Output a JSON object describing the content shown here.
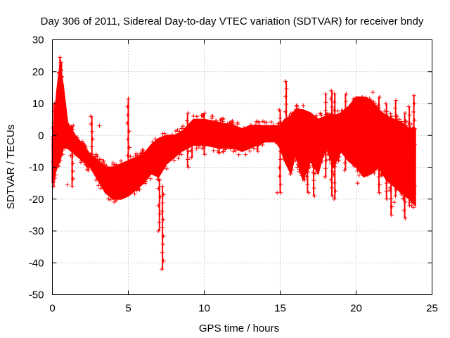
{
  "chart_data": {
    "type": "scatter",
    "title": "Day 306 of 2011, Sidereal Day-to-day VTEC variation (SDTVAR) for receiver bndy",
    "xlabel": "GPS time / hours",
    "ylabel": "SDTVAR / TECUs",
    "xlim": [
      0,
      25
    ],
    "ylim": [
      -50,
      30
    ],
    "xticks": [
      0,
      5,
      10,
      15,
      20,
      25
    ],
    "yticks": [
      -50,
      -40,
      -30,
      -20,
      -10,
      0,
      10,
      20,
      30
    ],
    "grid": true,
    "marker": "+",
    "color": "#ff0000",
    "series": [
      {
        "name": "SDTVAR",
        "envelope": {
          "x": [
            0.0,
            0.3,
            0.5,
            0.7,
            1.0,
            1.5,
            2.0,
            2.5,
            3.0,
            3.5,
            4.0,
            4.5,
            5.0,
            5.5,
            6.0,
            6.5,
            7.0,
            7.5,
            8.0,
            8.5,
            8.9,
            9.3,
            10.0,
            11.0,
            12.0,
            12.5,
            13.0,
            14.0,
            14.7,
            15.0,
            15.3,
            15.7,
            16.0,
            16.5,
            17.0,
            17.5,
            18.0,
            18.5,
            19.0,
            19.5,
            20.0,
            20.5,
            21.0,
            21.5,
            22.0,
            22.5,
            23.0,
            23.5,
            23.9
          ],
          "upper": [
            -2,
            14,
            22,
            16,
            4,
            0,
            -3,
            -6,
            -8,
            -10,
            -10,
            -9,
            -8,
            -7,
            -6,
            -3,
            -1,
            0,
            0,
            1,
            3,
            5,
            5,
            4,
            3,
            2,
            3,
            3,
            3,
            3,
            5,
            6,
            8,
            8,
            7,
            5,
            6,
            6,
            7,
            9,
            12,
            12,
            11,
            8,
            6,
            5,
            4,
            2,
            2
          ],
          "lower": [
            -15,
            -10,
            -8,
            -4,
            -4,
            -6,
            -8,
            -10,
            -14,
            -18,
            -20,
            -20,
            -19,
            -17,
            -15,
            -12,
            -13,
            -9,
            -7,
            -5,
            -4,
            -3,
            -3,
            -4,
            -4,
            -5,
            -4,
            -2,
            -2,
            -4,
            -8,
            -12,
            -6,
            -14,
            -8,
            -12,
            -3,
            -10,
            -5,
            -8,
            -10,
            -13,
            -12,
            -10,
            -14,
            -16,
            -18,
            -20,
            -22
          ]
        },
        "spikes": [
          {
            "x": 0.5,
            "min": -8,
            "max": 24.5
          },
          {
            "x": 0.6,
            "min": -6,
            "max": 23
          },
          {
            "x": 0.1,
            "min": -16,
            "max": 10
          },
          {
            "x": 1.3,
            "min": -16,
            "max": 3
          },
          {
            "x": 2.6,
            "min": -6,
            "max": 6
          },
          {
            "x": 5.0,
            "min": -14,
            "max": 11.5
          },
          {
            "x": 7.05,
            "min": -30,
            "max": -14
          },
          {
            "x": 7.25,
            "min": -42,
            "max": -16
          },
          {
            "x": 8.9,
            "min": -10,
            "max": 7
          },
          {
            "x": 9.2,
            "min": -7,
            "max": 2
          },
          {
            "x": 10.0,
            "min": -6,
            "max": 7
          },
          {
            "x": 13.5,
            "min": -5,
            "max": 1
          },
          {
            "x": 15.0,
            "min": -18,
            "max": 8
          },
          {
            "x": 15.4,
            "min": -7,
            "max": 17
          },
          {
            "x": 16.2,
            "min": -10,
            "max": 7
          },
          {
            "x": 16.6,
            "min": -14,
            "max": 6
          },
          {
            "x": 16.8,
            "min": -18,
            "max": 5
          },
          {
            "x": 17.2,
            "min": -19,
            "max": 3
          },
          {
            "x": 18.0,
            "min": -13,
            "max": 13
          },
          {
            "x": 18.4,
            "min": -19,
            "max": 14
          },
          {
            "x": 18.6,
            "min": -20,
            "max": 13
          },
          {
            "x": 19.3,
            "min": -11,
            "max": 13
          },
          {
            "x": 20.4,
            "min": -10,
            "max": 12
          },
          {
            "x": 21.5,
            "min": -18,
            "max": 12
          },
          {
            "x": 22.0,
            "min": -20,
            "max": 10
          },
          {
            "x": 22.3,
            "min": -25,
            "max": 6
          },
          {
            "x": 22.6,
            "min": -19,
            "max": 11
          },
          {
            "x": 23.2,
            "min": -26,
            "max": 7
          },
          {
            "x": 23.5,
            "min": -22,
            "max": 9
          },
          {
            "x": 23.8,
            "min": -21,
            "max": 12.5
          }
        ],
        "outliers": [
          {
            "x": 1.0,
            "y": -15.5
          },
          {
            "x": 3.1,
            "y": 3
          },
          {
            "x": 20.1,
            "y": -15
          },
          {
            "x": 21.1,
            "y": 13.5
          },
          {
            "x": 22.5,
            "y": -21
          },
          {
            "x": 14.8,
            "y": -18
          },
          {
            "x": 10.5,
            "y": -3
          },
          {
            "x": 6.8,
            "y": -8
          }
        ]
      }
    ]
  }
}
